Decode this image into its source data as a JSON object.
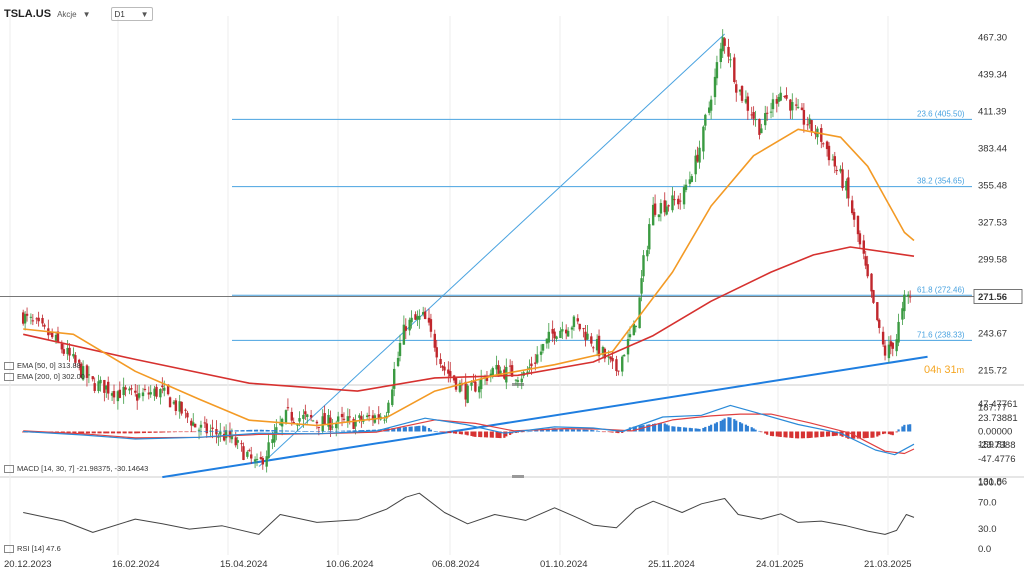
{
  "header": {
    "symbol": "TSLA.US",
    "market": "Akcje",
    "timeframe": "D1"
  },
  "timer": {
    "hours": "04",
    "h": "h",
    "minutes": "31",
    "m": "m"
  },
  "legends": {
    "ema50": "EMA [50, 0] 313.88",
    "ema200": "EMA [200, 0] 302.00",
    "macd": "MACD [14, 30, 7] -21.98375, -30.14643",
    "rsi": "RSI [14] 47.6"
  },
  "colors": {
    "bull": "#3a9a41",
    "bear": "#c0272d",
    "ema50": "#f39a25",
    "ema200": "#d6312f",
    "fib": "#4aa3e0",
    "trend": "#1f7ee0",
    "macd_line": "#2a8ad8",
    "signal_line": "#e04040",
    "hist_pos": "#2e7fd4",
    "hist_neg": "#d63232",
    "rsi": "#444444",
    "grid": "#eeeeee",
    "price_line": "#777777"
  },
  "chart_data": [
    {
      "type": "candlestick",
      "symbol": "TSLA.US",
      "timeframe": "D1",
      "x_ticks": [
        "20.12.2023",
        "16.02.2024",
        "15.04.2024",
        "10.06.2024",
        "06.08.2024",
        "01.10.2024",
        "25.11.2024",
        "24.01.2025",
        "21.03.2025"
      ],
      "y_ticks": [
        "467.30",
        "439.34",
        "411.39",
        "383.44",
        "355.48",
        "327.53",
        "299.58",
        "271.56",
        "243.67",
        "215.72",
        "187.77",
        "159.81",
        "131.86"
      ],
      "ylim": [
        131.86,
        467.3
      ],
      "current_price": "271.56",
      "close_path": [
        [
          "2023-12-20",
          257
        ],
        [
          "2024-01-05",
          240
        ],
        [
          "2024-01-25",
          206
        ],
        [
          "2024-02-16",
          196
        ],
        [
          "2024-03-01",
          200
        ],
        [
          "2024-03-20",
          172
        ],
        [
          "2024-04-05",
          165
        ],
        [
          "2024-04-20",
          143
        ],
        [
          "2024-05-05",
          182
        ],
        [
          "2024-05-25",
          176
        ],
        [
          "2024-06-10",
          177
        ],
        [
          "2024-06-25",
          183
        ],
        [
          "2024-07-05",
          250
        ],
        [
          "2024-07-15",
          256
        ],
        [
          "2024-07-25",
          218
        ],
        [
          "2024-08-06",
          198
        ],
        [
          "2024-08-20",
          216
        ],
        [
          "2024-09-05",
          212
        ],
        [
          "2024-09-20",
          245
        ],
        [
          "2024-10-01",
          252
        ],
        [
          "2024-10-10",
          238
        ],
        [
          "2024-10-22",
          215
        ],
        [
          "2024-11-01",
          249
        ],
        [
          "2024-11-10",
          338
        ],
        [
          "2024-11-25",
          345
        ],
        [
          "2024-12-05",
          385
        ],
        [
          "2024-12-17",
          470
        ],
        [
          "2024-12-24",
          430
        ],
        [
          "2025-01-05",
          398
        ],
        [
          "2025-01-15",
          428
        ],
        [
          "2025-01-24",
          410
        ],
        [
          "2025-02-05",
          392
        ],
        [
          "2025-02-18",
          355
        ],
        [
          "2025-03-01",
          288
        ],
        [
          "2025-03-10",
          228
        ],
        [
          "2025-03-16",
          238
        ],
        [
          "2025-03-21",
          270
        ],
        [
          "2025-03-25",
          271.56
        ]
      ],
      "ema50_path": [
        [
          "2023-12-20",
          247
        ],
        [
          "2024-01-15",
          243
        ],
        [
          "2024-02-16",
          215
        ],
        [
          "2024-03-20",
          194
        ],
        [
          "2024-04-15",
          178
        ],
        [
          "2024-05-20",
          174
        ],
        [
          "2024-06-25",
          180
        ],
        [
          "2024-07-20",
          200
        ],
        [
          "2024-08-20",
          212
        ],
        [
          "2024-09-20",
          220
        ],
        [
          "2024-10-20",
          230
        ],
        [
          "2024-11-20",
          290
        ],
        [
          "2024-12-10",
          340
        ],
        [
          "2025-01-01",
          378
        ],
        [
          "2025-01-24",
          398
        ],
        [
          "2025-02-15",
          392
        ],
        [
          "2025-03-01",
          370
        ],
        [
          "2025-03-20",
          320
        ],
        [
          "2025-03-25",
          313.88
        ]
      ],
      "ema200_path": [
        [
          "2023-12-20",
          243
        ],
        [
          "2024-02-16",
          224
        ],
        [
          "2024-04-15",
          206
        ],
        [
          "2024-06-10",
          200
        ],
        [
          "2024-07-20",
          210
        ],
        [
          "2024-09-01",
          212
        ],
        [
          "2024-10-10",
          222
        ],
        [
          "2024-11-10",
          242
        ],
        [
          "2024-12-10",
          268
        ],
        [
          "2025-01-10",
          290
        ],
        [
          "2025-02-01",
          303
        ],
        [
          "2025-02-20",
          309
        ],
        [
          "2025-03-25",
          302.0
        ]
      ],
      "fibonacci_levels": [
        {
          "label": "23.6 (405.50)",
          "value": 405.5
        },
        {
          "label": "38.2 (354.65)",
          "value": 354.65
        },
        {
          "label": "61.8 (272.46)",
          "value": 272.46
        },
        {
          "label": "71.6 (238.33)",
          "value": 238.33
        }
      ],
      "swing_low": [
        "2024-04-20",
        143
      ],
      "swing_high": [
        "2024-12-17",
        470
      ],
      "trendline": [
        [
          "2024-03-01",
          135
        ],
        [
          "2025-04-01",
          226
        ]
      ]
    },
    {
      "type": "histogram",
      "name": "MACD [14, 30, 7]",
      "values_text": [
        "-21.98375",
        "-30.14643"
      ],
      "y_ticks": [
        "47.47761",
        "23.73881",
        "0.00000",
        "-23.7388",
        "-47.4776"
      ],
      "ylim": [
        -47.4776,
        47.47761
      ],
      "macd_path": [
        [
          "2023-12-20",
          0
        ],
        [
          "2024-01-20",
          -6
        ],
        [
          "2024-02-16",
          -13
        ],
        [
          "2024-03-20",
          -10
        ],
        [
          "2024-04-20",
          -3
        ],
        [
          "2024-05-20",
          -4
        ],
        [
          "2024-06-20",
          1
        ],
        [
          "2024-07-15",
          23
        ],
        [
          "2024-08-05",
          12
        ],
        [
          "2024-08-25",
          -3
        ],
        [
          "2024-09-20",
          8
        ],
        [
          "2024-10-10",
          6
        ],
        [
          "2024-10-25",
          0
        ],
        [
          "2024-11-15",
          25
        ],
        [
          "2024-12-05",
          28
        ],
        [
          "2024-12-20",
          45
        ],
        [
          "2025-01-05",
          30
        ],
        [
          "2025-01-24",
          12
        ],
        [
          "2025-02-15",
          -3
        ],
        [
          "2025-03-05",
          -32
        ],
        [
          "2025-03-15",
          -40
        ],
        [
          "2025-03-25",
          -21.98
        ]
      ],
      "signal_path": [
        [
          "2023-12-20",
          1
        ],
        [
          "2024-01-20",
          -4
        ],
        [
          "2024-02-16",
          -11
        ],
        [
          "2024-03-20",
          -10
        ],
        [
          "2024-04-20",
          -5
        ],
        [
          "2024-05-20",
          -4
        ],
        [
          "2024-06-20",
          -1
        ],
        [
          "2024-07-20",
          20
        ],
        [
          "2024-08-10",
          14
        ],
        [
          "2024-08-30",
          1
        ],
        [
          "2024-09-25",
          5
        ],
        [
          "2024-10-15",
          4
        ],
        [
          "2024-10-30",
          1
        ],
        [
          "2024-11-20",
          20
        ],
        [
          "2024-12-10",
          27
        ],
        [
          "2024-12-25",
          30
        ],
        [
          "2025-01-10",
          30
        ],
        [
          "2025-01-30",
          15
        ],
        [
          "2025-02-20",
          -3
        ],
        [
          "2025-03-10",
          -34
        ],
        [
          "2025-03-20",
          -38
        ],
        [
          "2025-03-25",
          -30.15
        ]
      ]
    },
    {
      "type": "line",
      "name": "RSI [14]",
      "value_text": "47.6",
      "y_ticks": [
        "100.0",
        "70.0",
        "30.0",
        "0.0"
      ],
      "ylim": [
        0,
        100
      ],
      "rsi_path": [
        [
          "2023-12-20",
          55
        ],
        [
          "2024-01-10",
          42
        ],
        [
          "2024-01-25",
          25
        ],
        [
          "2024-02-16",
          45
        ],
        [
          "2024-03-01",
          38
        ],
        [
          "2024-03-15",
          30
        ],
        [
          "2024-04-01",
          35
        ],
        [
          "2024-04-20",
          22
        ],
        [
          "2024-05-01",
          52
        ],
        [
          "2024-05-20",
          40
        ],
        [
          "2024-06-10",
          44
        ],
        [
          "2024-06-25",
          60
        ],
        [
          "2024-07-05",
          78
        ],
        [
          "2024-07-12",
          84
        ],
        [
          "2024-07-25",
          55
        ],
        [
          "2024-08-06",
          38
        ],
        [
          "2024-08-20",
          52
        ],
        [
          "2024-09-05",
          43
        ],
        [
          "2024-09-20",
          62
        ],
        [
          "2024-10-01",
          48
        ],
        [
          "2024-10-10",
          36
        ],
        [
          "2024-10-22",
          32
        ],
        [
          "2024-11-01",
          60
        ],
        [
          "2024-11-10",
          72
        ],
        [
          "2024-11-25",
          55
        ],
        [
          "2024-12-05",
          68
        ],
        [
          "2024-12-17",
          76
        ],
        [
          "2024-12-24",
          52
        ],
        [
          "2025-01-05",
          45
        ],
        [
          "2025-01-15",
          53
        ],
        [
          "2025-01-24",
          40
        ],
        [
          "2025-02-05",
          42
        ],
        [
          "2025-02-18",
          35
        ],
        [
          "2025-03-01",
          27
        ],
        [
          "2025-03-10",
          22
        ],
        [
          "2025-03-16",
          28
        ],
        [
          "2025-03-21",
          52
        ],
        [
          "2025-03-25",
          47.6
        ]
      ]
    }
  ]
}
